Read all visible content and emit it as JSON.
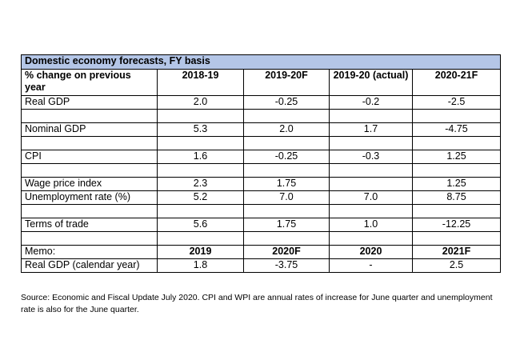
{
  "table": {
    "title": "Domestic economy forecasts, FY basis",
    "header": {
      "label": "% change on previous year",
      "cols": [
        "2018-19",
        "2019-20F",
        "2019-20 (actual)",
        "2020-21F"
      ]
    },
    "rows": [
      {
        "label": "Real GDP",
        "values": [
          "2.0",
          "-0.25",
          "-0.2",
          "-2.5"
        ]
      },
      {
        "label": "",
        "values": [
          "",
          "",
          "",
          ""
        ]
      },
      {
        "label": "Nominal GDP",
        "values": [
          "5.3",
          "2.0",
          "1.7",
          "-4.75"
        ]
      },
      {
        "label": "",
        "values": [
          "",
          "",
          "",
          ""
        ]
      },
      {
        "label": "CPI",
        "values": [
          "1.6",
          "-0.25",
          "-0.3",
          "1.25"
        ]
      },
      {
        "label": "",
        "values": [
          "",
          "",
          "",
          ""
        ]
      },
      {
        "label": "Wage price index",
        "values": [
          "2.3",
          "1.75",
          "",
          "1.25"
        ]
      },
      {
        "label": "Unemployment rate (%)",
        "values": [
          "5.2",
          "7.0",
          "7.0",
          "8.75"
        ]
      },
      {
        "label": "",
        "values": [
          "",
          "",
          "",
          ""
        ]
      },
      {
        "label": "Terms of trade",
        "values": [
          "5.6",
          "1.75",
          "1.0",
          "-12.25"
        ]
      },
      {
        "label": "",
        "values": [
          "",
          "",
          "",
          ""
        ]
      }
    ],
    "memo": {
      "label": "Memo:",
      "cols": [
        "2019",
        "2020F",
        "2020",
        "2021F"
      ]
    },
    "memo_rows": [
      {
        "label": "Real GDP (calendar year)",
        "values": [
          "1.8",
          "-3.75",
          "-",
          "2.5"
        ]
      }
    ]
  },
  "note": "Source: Economic and Fiscal Update July 2020.  CPI and WPI are annual rates of increase for June quarter and unemployment rate is also for the June quarter."
}
